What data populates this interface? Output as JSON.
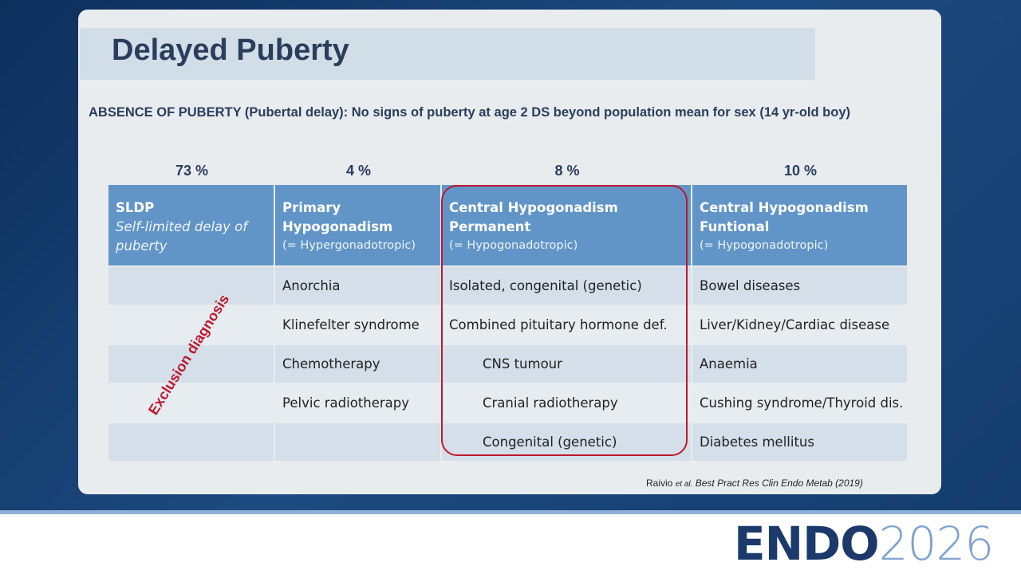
{
  "slide": {
    "title": "Delayed Puberty",
    "definition": "ABSENCE OF PUBERTY (Pubertal delay):  No signs of puberty at age 2 DS beyond population mean for sex (14 yr-old boy)",
    "percentages": [
      "73 %",
      "4 %",
      "8 %",
      "10 %"
    ],
    "table": {
      "header": [
        {
          "title": [
            "SLDP"
          ],
          "subtitle": [
            "Self-limited delay of",
            "puberty"
          ]
        },
        {
          "title": [
            "Primary",
            "Hypogonadism"
          ],
          "note": "(= Hypergonadotropic)"
        },
        {
          "title": [
            "Central Hypogonadism",
            "Permanent"
          ],
          "note": "(= Hypogonadotropic)"
        },
        {
          "title": [
            "Central Hypogonadism",
            "Funtional"
          ],
          "note": "(= Hypogonadotropic)"
        }
      ],
      "rows": [
        [
          null,
          "Anorchia",
          "Isolated, congenital (genetic)",
          "Bowel diseases"
        ],
        [
          null,
          "Klinefelter syndrome",
          "Combined pituitary hormone def.",
          "Liver/Kidney/Cardiac disease"
        ],
        [
          null,
          "Chemotherapy",
          "CNS tumour",
          "Anaemia"
        ],
        [
          null,
          "Pelvic radiotherapy",
          "Cranial radiotherapy",
          "Cushing syndrome/Thyroid dis."
        ],
        [
          null,
          null,
          "Congenital (genetic)",
          "Diabetes mellitus"
        ]
      ]
    },
    "annotation": "Exclusion diagnosis",
    "citation": {
      "author": "Raivio",
      "etal": "et al.",
      "source": "Best Pract Res Clin Endo Metab (2019)"
    },
    "logo": {
      "brand": "ENDO",
      "year": "2026"
    }
  }
}
